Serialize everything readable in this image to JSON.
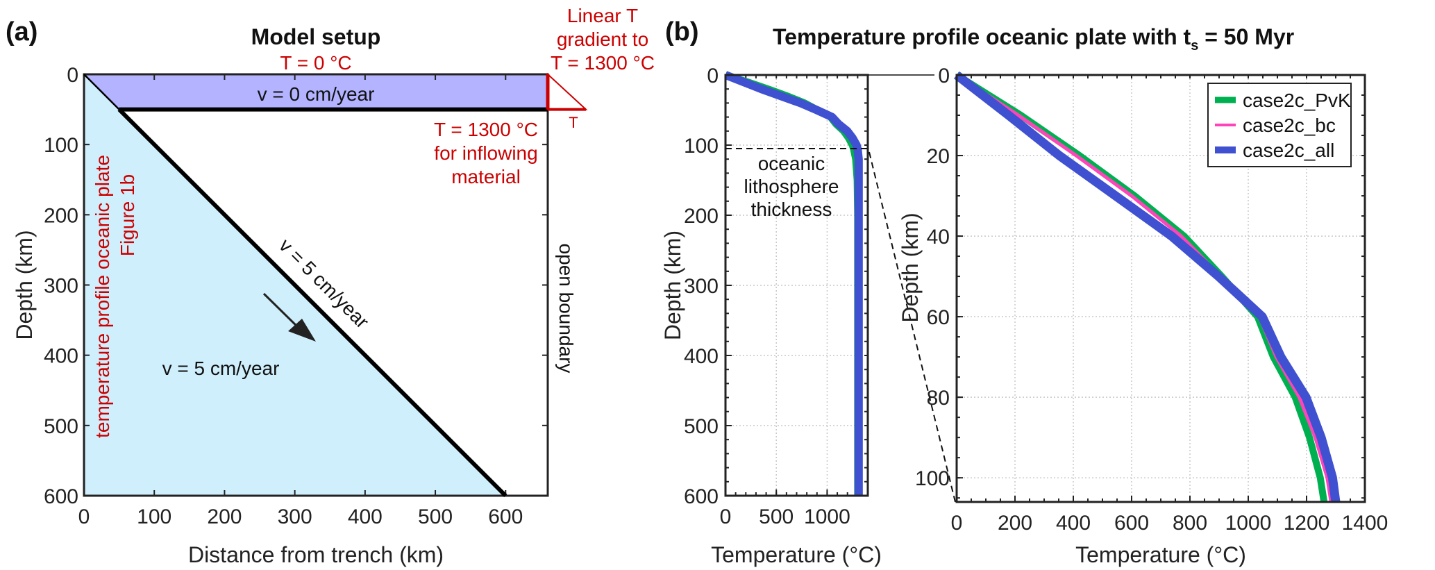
{
  "chart_data": [
    {
      "type": "diagram",
      "panel_label": "(a)",
      "title": "Model setup",
      "xlabel": "Distance from trench (km)",
      "ylabel": "Depth (km)",
      "xlim": [
        0,
        660
      ],
      "ylim": [
        0,
        600
      ],
      "xticks": [
        0,
        100,
        200,
        300,
        400,
        500,
        600
      ],
      "yticks": [
        0,
        100,
        200,
        300,
        400,
        500,
        600
      ],
      "overriding_plate_depth": 50,
      "slab_line": [
        [
          0,
          0
        ],
        [
          50,
          50
        ],
        [
          600,
          600
        ]
      ],
      "colors": {
        "overriding": "#b3b3ff",
        "wedge": "#d0effc",
        "annotation": "#cc0000"
      },
      "annotations": {
        "top_bc": "T = 0 °C",
        "overriding_velocity": "v = 0 cm/year",
        "right_bc_line1": "Linear T",
        "right_bc_line2": "gradient to",
        "right_bc_line3": "T = 1300 °C",
        "gradient_axis": "T",
        "inflow_line1": "T = 1300 °C",
        "inflow_line2": "for inflowing",
        "inflow_line3": "material",
        "slab_velocity": "v = 5 cm/year",
        "wedge_velocity": "v = 5 cm/year",
        "left_bc_line1": "temperature profile oceanic plate",
        "left_bc_line2": "Figure 1b",
        "right_boundary": "open boundary"
      }
    },
    {
      "type": "line",
      "panel_label": "(b)",
      "title_prefix": "Temperature profile oceanic plate with t",
      "title_sub": "s",
      "title_suffix": " = 50 Myr",
      "xlabel": "Temperature (°C)",
      "ylabel": "Depth (km)",
      "xlim": [
        0,
        1400
      ],
      "ylim": [
        0,
        600
      ],
      "xticks": [
        0,
        500,
        1000
      ],
      "yticks": [
        0,
        100,
        200,
        300,
        400,
        500,
        600
      ],
      "annotation_line1": "oceanic",
      "annotation_line2": "lithosphere",
      "annotation_line3": "thickness",
      "lithosphere_thickness": 105,
      "grid": true
    },
    {
      "type": "line",
      "xlabel": "Temperature (°C)",
      "ylabel": "Depth (km)",
      "xlim": [
        0,
        1400
      ],
      "ylim": [
        0,
        106
      ],
      "xticks": [
        0,
        200,
        400,
        600,
        800,
        1000,
        1200,
        1400
      ],
      "yticks": [
        0,
        20,
        40,
        60,
        80,
        100
      ],
      "grid": true,
      "legend_position": "top-right",
      "series": [
        {
          "name": "case2c_PvK",
          "color": "#00b050",
          "depth": [
            0,
            10,
            20,
            30,
            40,
            50,
            60,
            70,
            80,
            90,
            100,
            106,
            120,
            150,
            200,
            600
          ],
          "temperature": [
            0,
            220,
            421,
            610,
            780,
            909,
            1032,
            1086,
            1161,
            1210,
            1247,
            1260,
            1280,
            1295,
            1300,
            1300
          ]
        },
        {
          "name": "case2c_bc",
          "color": "#ff44bb",
          "depth": [
            0,
            10,
            20,
            30,
            40,
            50,
            60,
            70,
            80,
            90,
            100,
            106,
            120,
            150,
            200,
            600
          ],
          "temperature": [
            0,
            212,
            410,
            600,
            770,
            905,
            1038,
            1096,
            1175,
            1230,
            1271,
            1284,
            1295,
            1300,
            1300,
            1300
          ]
        },
        {
          "name": "case2c_all",
          "color": "#3f51d0",
          "depth": [
            0,
            10,
            20,
            30,
            40,
            50,
            60,
            70,
            80,
            90,
            100,
            106,
            120,
            150,
            200,
            600
          ],
          "temperature": [
            0,
            178,
            352,
            545,
            737,
            898,
            1048,
            1112,
            1198,
            1250,
            1289,
            1300,
            1310,
            1310,
            1310,
            1310
          ]
        }
      ]
    }
  ]
}
